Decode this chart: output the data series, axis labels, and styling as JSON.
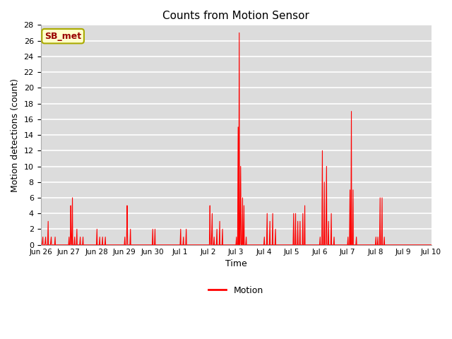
{
  "title": "Counts from Motion Sensor",
  "xlabel": "Time",
  "ylabel": "Motion detections (count)",
  "line_color": "#FF0000",
  "line_width": 0.8,
  "fig_bg_color": "#FFFFFF",
  "plot_bg_color": "#DCDCDC",
  "ylim": [
    0,
    28
  ],
  "yticks": [
    0,
    2,
    4,
    6,
    8,
    10,
    12,
    14,
    16,
    18,
    20,
    22,
    24,
    26,
    28
  ],
  "legend_label": "Motion",
  "annotation_text": "SB_met",
  "annotation_color": "#990000",
  "annotation_bg": "#FFFFCC",
  "annotation_border": "#AAAA00",
  "x_tick_labels": [
    "Jun 26",
    "Jun 27",
    "Jun 28",
    "Jun 29",
    "Jun 30",
    "Jul 1",
    "Jul 2",
    "Jul 3",
    "Jul 4",
    "Jul 5",
    "Jul 6",
    "Jul 7",
    "Jul 8",
    "Jul 9",
    "Jul 10"
  ],
  "data_points": [
    [
      0,
      0
    ],
    [
      0.05,
      0
    ],
    [
      0.08,
      1
    ],
    [
      0.09,
      0
    ],
    [
      0.15,
      0
    ],
    [
      0.18,
      1
    ],
    [
      0.19,
      0
    ],
    [
      0.25,
      0
    ],
    [
      0.27,
      3
    ],
    [
      0.28,
      0
    ],
    [
      0.35,
      0
    ],
    [
      0.38,
      1
    ],
    [
      0.39,
      0
    ],
    [
      0.5,
      0
    ],
    [
      0.52,
      1
    ],
    [
      0.53,
      0
    ],
    [
      0.6,
      0
    ],
    [
      1.0,
      0
    ],
    [
      1.02,
      1
    ],
    [
      1.03,
      0
    ],
    [
      1.06,
      0
    ],
    [
      1.08,
      5
    ],
    [
      1.09,
      2
    ],
    [
      1.1,
      0
    ],
    [
      1.12,
      0
    ],
    [
      1.14,
      6
    ],
    [
      1.15,
      0
    ],
    [
      1.2,
      0
    ],
    [
      1.22,
      1
    ],
    [
      1.23,
      0
    ],
    [
      1.28,
      0
    ],
    [
      1.3,
      2
    ],
    [
      1.31,
      0
    ],
    [
      1.4,
      0
    ],
    [
      1.42,
      1
    ],
    [
      1.43,
      0
    ],
    [
      1.5,
      0
    ],
    [
      1.52,
      1
    ],
    [
      1.53,
      0
    ],
    [
      1.6,
      0
    ],
    [
      2.0,
      0
    ],
    [
      2.02,
      2
    ],
    [
      2.03,
      0
    ],
    [
      2.1,
      0
    ],
    [
      2.12,
      1
    ],
    [
      2.13,
      0
    ],
    [
      2.2,
      0
    ],
    [
      2.22,
      1
    ],
    [
      2.23,
      0
    ],
    [
      2.3,
      0
    ],
    [
      2.32,
      1
    ],
    [
      2.33,
      0
    ],
    [
      2.5,
      0
    ],
    [
      3.0,
      0
    ],
    [
      3.02,
      1
    ],
    [
      3.03,
      0
    ],
    [
      3.08,
      0
    ],
    [
      3.1,
      5
    ],
    [
      3.11,
      2
    ],
    [
      3.12,
      0
    ],
    [
      3.2,
      0
    ],
    [
      3.22,
      2
    ],
    [
      3.23,
      0
    ],
    [
      3.3,
      0
    ],
    [
      4.0,
      0
    ],
    [
      4.02,
      2
    ],
    [
      4.03,
      0
    ],
    [
      4.08,
      0
    ],
    [
      4.1,
      2
    ],
    [
      4.11,
      0
    ],
    [
      4.2,
      0
    ],
    [
      5.0,
      0
    ],
    [
      5.02,
      2
    ],
    [
      5.03,
      0
    ],
    [
      5.1,
      0
    ],
    [
      5.12,
      1
    ],
    [
      5.13,
      0
    ],
    [
      5.2,
      0
    ],
    [
      5.22,
      2
    ],
    [
      5.23,
      0
    ],
    [
      5.3,
      0
    ],
    [
      6.0,
      0
    ],
    [
      6.05,
      0
    ],
    [
      6.07,
      5
    ],
    [
      6.08,
      1
    ],
    [
      6.09,
      0
    ],
    [
      6.12,
      0
    ],
    [
      6.15,
      4
    ],
    [
      6.16,
      0
    ],
    [
      6.2,
      0
    ],
    [
      6.22,
      1
    ],
    [
      6.23,
      0
    ],
    [
      6.3,
      0
    ],
    [
      6.32,
      2
    ],
    [
      6.33,
      0
    ],
    [
      6.4,
      0
    ],
    [
      6.42,
      3
    ],
    [
      6.43,
      0
    ],
    [
      6.5,
      0
    ],
    [
      6.52,
      2
    ],
    [
      6.53,
      0
    ],
    [
      6.7,
      0
    ],
    [
      7.0,
      0
    ],
    [
      7.02,
      1
    ],
    [
      7.03,
      0
    ],
    [
      7.06,
      0
    ],
    [
      7.08,
      15
    ],
    [
      7.09,
      0
    ],
    [
      7.1,
      0
    ],
    [
      7.12,
      27
    ],
    [
      7.13,
      0
    ],
    [
      7.15,
      0
    ],
    [
      7.17,
      10
    ],
    [
      7.18,
      5
    ],
    [
      7.19,
      0
    ],
    [
      7.22,
      0
    ],
    [
      7.24,
      6
    ],
    [
      7.25,
      0
    ],
    [
      7.27,
      0
    ],
    [
      7.29,
      5
    ],
    [
      7.3,
      0
    ],
    [
      7.35,
      0
    ],
    [
      7.37,
      1
    ],
    [
      7.38,
      0
    ],
    [
      7.5,
      0
    ],
    [
      8.0,
      0
    ],
    [
      8.02,
      1
    ],
    [
      8.03,
      0
    ],
    [
      8.1,
      0
    ],
    [
      8.12,
      4
    ],
    [
      8.13,
      0
    ],
    [
      8.2,
      0
    ],
    [
      8.22,
      3
    ],
    [
      8.23,
      0
    ],
    [
      8.3,
      0
    ],
    [
      8.32,
      4
    ],
    [
      8.33,
      0
    ],
    [
      8.4,
      0
    ],
    [
      8.42,
      2
    ],
    [
      8.43,
      0
    ],
    [
      8.5,
      0
    ],
    [
      9.0,
      0
    ],
    [
      9.05,
      0
    ],
    [
      9.07,
      4
    ],
    [
      9.08,
      0
    ],
    [
      9.12,
      0
    ],
    [
      9.14,
      4
    ],
    [
      9.15,
      0
    ],
    [
      9.2,
      0
    ],
    [
      9.22,
      3
    ],
    [
      9.23,
      0
    ],
    [
      9.28,
      0
    ],
    [
      9.3,
      3
    ],
    [
      9.31,
      0
    ],
    [
      9.38,
      0
    ],
    [
      9.4,
      4
    ],
    [
      9.41,
      0
    ],
    [
      9.45,
      0
    ],
    [
      9.47,
      5
    ],
    [
      9.48,
      0
    ],
    [
      9.55,
      0
    ],
    [
      10.0,
      0
    ],
    [
      10.02,
      1
    ],
    [
      10.03,
      0
    ],
    [
      10.08,
      0
    ],
    [
      10.1,
      12
    ],
    [
      10.11,
      0
    ],
    [
      10.15,
      0
    ],
    [
      10.17,
      8
    ],
    [
      10.18,
      0
    ],
    [
      10.22,
      0
    ],
    [
      10.25,
      10
    ],
    [
      10.26,
      0
    ],
    [
      10.3,
      0
    ],
    [
      10.32,
      3
    ],
    [
      10.33,
      0
    ],
    [
      10.4,
      0
    ],
    [
      10.42,
      4
    ],
    [
      10.43,
      0
    ],
    [
      10.5,
      0
    ],
    [
      10.52,
      1
    ],
    [
      10.53,
      0
    ],
    [
      10.6,
      0
    ],
    [
      11.0,
      0
    ],
    [
      11.02,
      1
    ],
    [
      11.03,
      0
    ],
    [
      11.07,
      0
    ],
    [
      11.09,
      7
    ],
    [
      11.1,
      0
    ],
    [
      11.12,
      0
    ],
    [
      11.14,
      17
    ],
    [
      11.15,
      0
    ],
    [
      11.18,
      0
    ],
    [
      11.2,
      7
    ],
    [
      11.21,
      0
    ],
    [
      11.3,
      0
    ],
    [
      11.32,
      1
    ],
    [
      11.33,
      0
    ],
    [
      11.5,
      0
    ],
    [
      12.0,
      0
    ],
    [
      12.02,
      1
    ],
    [
      12.03,
      0
    ],
    [
      12.07,
      0
    ],
    [
      12.09,
      1
    ],
    [
      12.1,
      0
    ],
    [
      12.15,
      0
    ],
    [
      12.17,
      6
    ],
    [
      12.18,
      0
    ],
    [
      12.22,
      0
    ],
    [
      12.24,
      6
    ],
    [
      12.25,
      0
    ],
    [
      12.3,
      0
    ],
    [
      12.32,
      1
    ],
    [
      12.33,
      0
    ],
    [
      12.5,
      0
    ],
    [
      13.0,
      0
    ],
    [
      14.0,
      0
    ]
  ]
}
